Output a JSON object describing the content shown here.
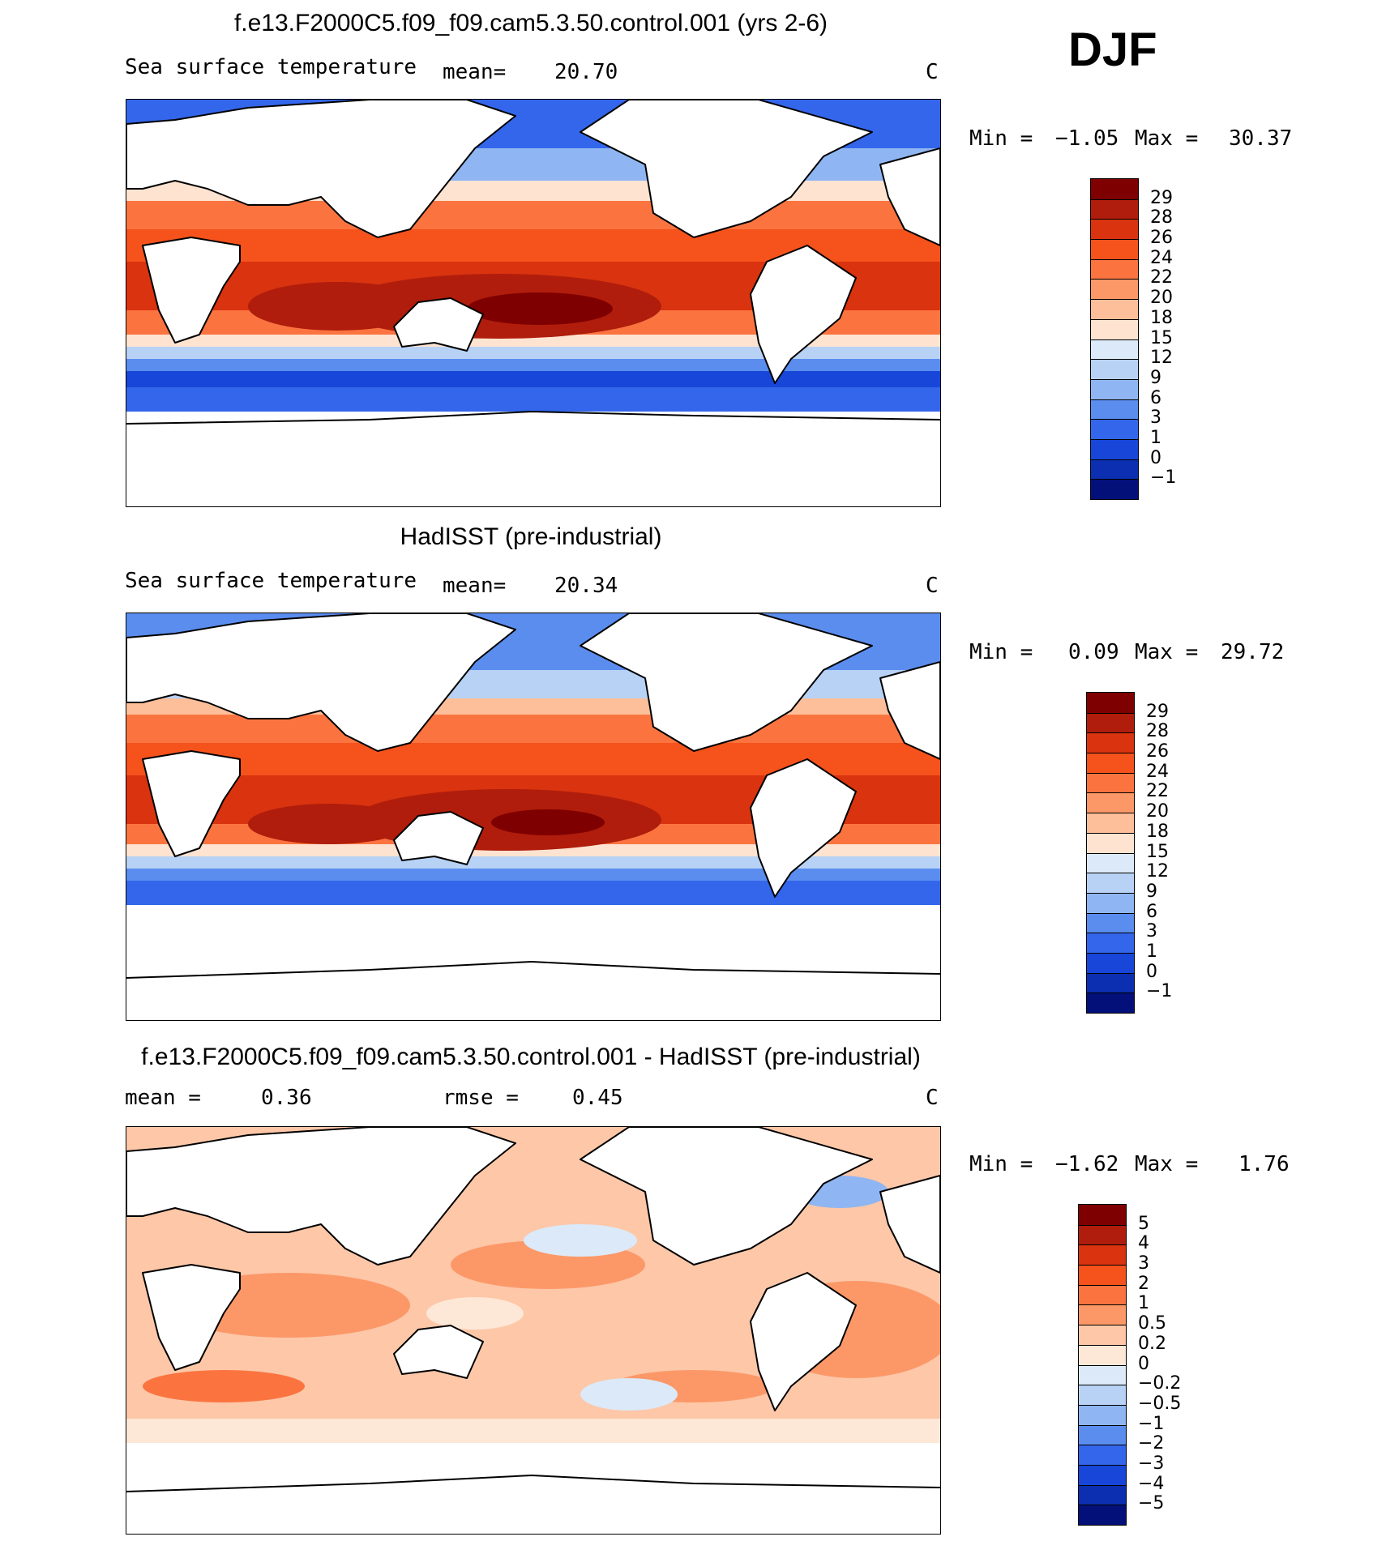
{
  "season": "DJF",
  "panels": [
    {
      "title": "f.e13.F2000C5.f09_f09.cam5.3.50.control.001 (yrs 2-6)",
      "variable": "Sea surface temperature",
      "stat1_label": "mean=",
      "stat1_value": "20.70",
      "stat2_label": "",
      "stat2_value": "",
      "units": "C",
      "min_label": "Min =",
      "min_value": "−1.05",
      "max_label": "Max =",
      "max_value": "30.37",
      "levels": [
        "29",
        "28",
        "26",
        "24",
        "22",
        "20",
        "18",
        "15",
        "12",
        "9",
        "6",
        "3",
        "1",
        "0",
        "−1"
      ],
      "colors": [
        "#7f0000",
        "#b01d0c",
        "#d9330f",
        "#f5521c",
        "#fb7440",
        "#fc9868",
        "#fdbe9a",
        "#fde3d0",
        "#dce9f8",
        "#b8d2f5",
        "#8fb6f2",
        "#5b8def",
        "#3366ea",
        "#1746d8",
        "#0b2fb0",
        "#04107a"
      ]
    },
    {
      "title": "HadISST (pre-industrial)",
      "variable": "Sea surface temperature",
      "stat1_label": "mean=",
      "stat1_value": "20.34",
      "stat2_label": "",
      "stat2_value": "",
      "units": "C",
      "min_label": "Min =",
      "min_value": "0.09",
      "max_label": "Max =",
      "max_value": "29.72",
      "levels": [
        "29",
        "28",
        "26",
        "24",
        "22",
        "20",
        "18",
        "15",
        "12",
        "9",
        "6",
        "3",
        "1",
        "0",
        "−1"
      ],
      "colors": [
        "#7f0000",
        "#b01d0c",
        "#d9330f",
        "#f5521c",
        "#fb7440",
        "#fc9868",
        "#fdbe9a",
        "#fde3d0",
        "#dce9f8",
        "#b8d2f5",
        "#8fb6f2",
        "#5b8def",
        "#3366ea",
        "#1746d8",
        "#0b2fb0",
        "#04107a"
      ]
    },
    {
      "title": "f.e13.F2000C5.f09_f09.cam5.3.50.control.001 - HadISST (pre-industrial)",
      "variable": "",
      "stat1_label": "mean =",
      "stat1_value": "0.36",
      "stat2_label": "rmse =",
      "stat2_value": "0.45",
      "units": "C",
      "min_label": "Min =",
      "min_value": "−1.62",
      "max_label": "Max =",
      "max_value": "1.76",
      "levels": [
        "5",
        "4",
        "3",
        "2",
        "1",
        "0.5",
        "0.2",
        "0",
        "−0.2",
        "−0.5",
        "−1",
        "−2",
        "−3",
        "−4",
        "−5"
      ],
      "colors": [
        "#7f0000",
        "#b01d0c",
        "#d9330f",
        "#f5521c",
        "#fb7440",
        "#fc9868",
        "#fdc7a8",
        "#fde7d6",
        "#dce9f8",
        "#b8d2f5",
        "#8fb6f2",
        "#5b8def",
        "#3366ea",
        "#1746d8",
        "#0b2fb0",
        "#04107a"
      ]
    }
  ]
}
